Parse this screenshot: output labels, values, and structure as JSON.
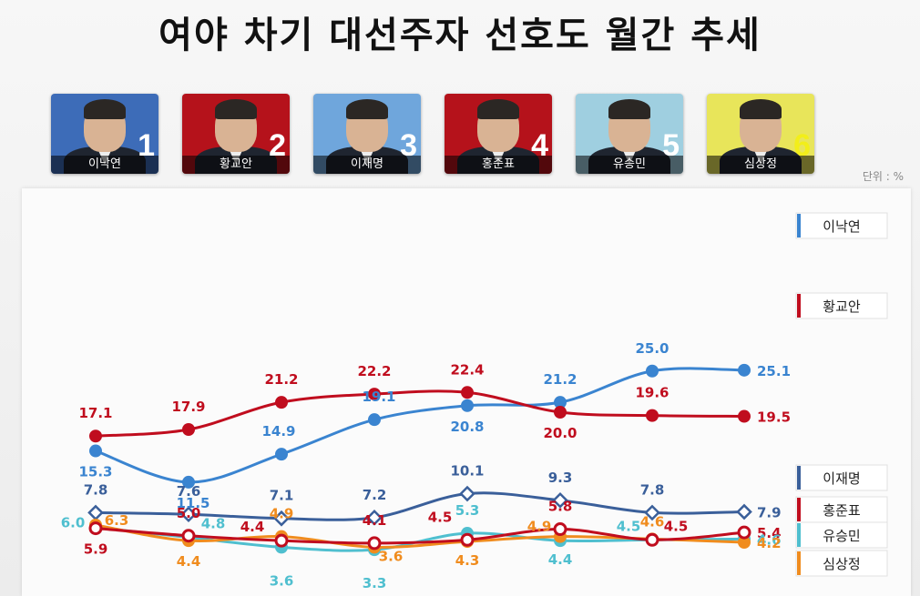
{
  "title": "여야 차기 대선주자 선호도 월간 추세",
  "unit": "단위 : %",
  "candidates": [
    {
      "rank": "1",
      "name": "이낙연",
      "bg": "#3d6cb8",
      "numColor": "#ffffff"
    },
    {
      "rank": "2",
      "name": "황교안",
      "bg": "#b5121b",
      "numColor": "#ffffff"
    },
    {
      "rank": "3",
      "name": "이재명",
      "bg": "#6fa6dc",
      "numColor": "#ffffff"
    },
    {
      "rank": "4",
      "name": "홍준표",
      "bg": "#b5121b",
      "numColor": "#ffffff"
    },
    {
      "rank": "5",
      "name": "유승민",
      "bg": "#9fcfe0",
      "numColor": "#ffffff"
    },
    {
      "rank": "6",
      "name": "심상정",
      "bg": "#e8e55a",
      "numColor": "#f2ee1a"
    }
  ],
  "chart_data": {
    "type": "line",
    "x": [
      1,
      2,
      3,
      4,
      5,
      6,
      7,
      8
    ],
    "grid": false,
    "legend": "right",
    "series": [
      {
        "name": "이낙연",
        "color": "#3a84d0",
        "marker": "circle",
        "values": [
          15.3,
          11.5,
          14.9,
          19.1,
          20.8,
          21.2,
          25.0,
          25.1
        ]
      },
      {
        "name": "황교안",
        "color": "#c00d1e",
        "marker": "circle",
        "values": [
          17.1,
          17.9,
          21.2,
          22.2,
          22.4,
          20.0,
          19.6,
          19.5
        ]
      },
      {
        "name": "이재명",
        "color": "#3a5f9a",
        "marker": "diamond",
        "values": [
          7.8,
          7.6,
          7.1,
          7.2,
          10.1,
          9.3,
          7.8,
          7.9
        ]
      },
      {
        "name": "홍준표",
        "color": "#c00d1e",
        "marker": "ring",
        "values": [
          5.9,
          5.0,
          4.4,
          4.1,
          4.5,
          5.8,
          4.5,
          5.4
        ]
      },
      {
        "name": "유승민",
        "color": "#4fbfcf",
        "marker": "circle",
        "values": [
          6.0,
          4.8,
          3.6,
          3.3,
          5.3,
          4.4,
          4.5,
          4.6
        ]
      },
      {
        "name": "심상정",
        "color": "#f08c1e",
        "marker": "circle",
        "values": [
          6.3,
          4.4,
          4.9,
          3.6,
          4.3,
          4.9,
          4.6,
          4.2
        ]
      }
    ]
  }
}
